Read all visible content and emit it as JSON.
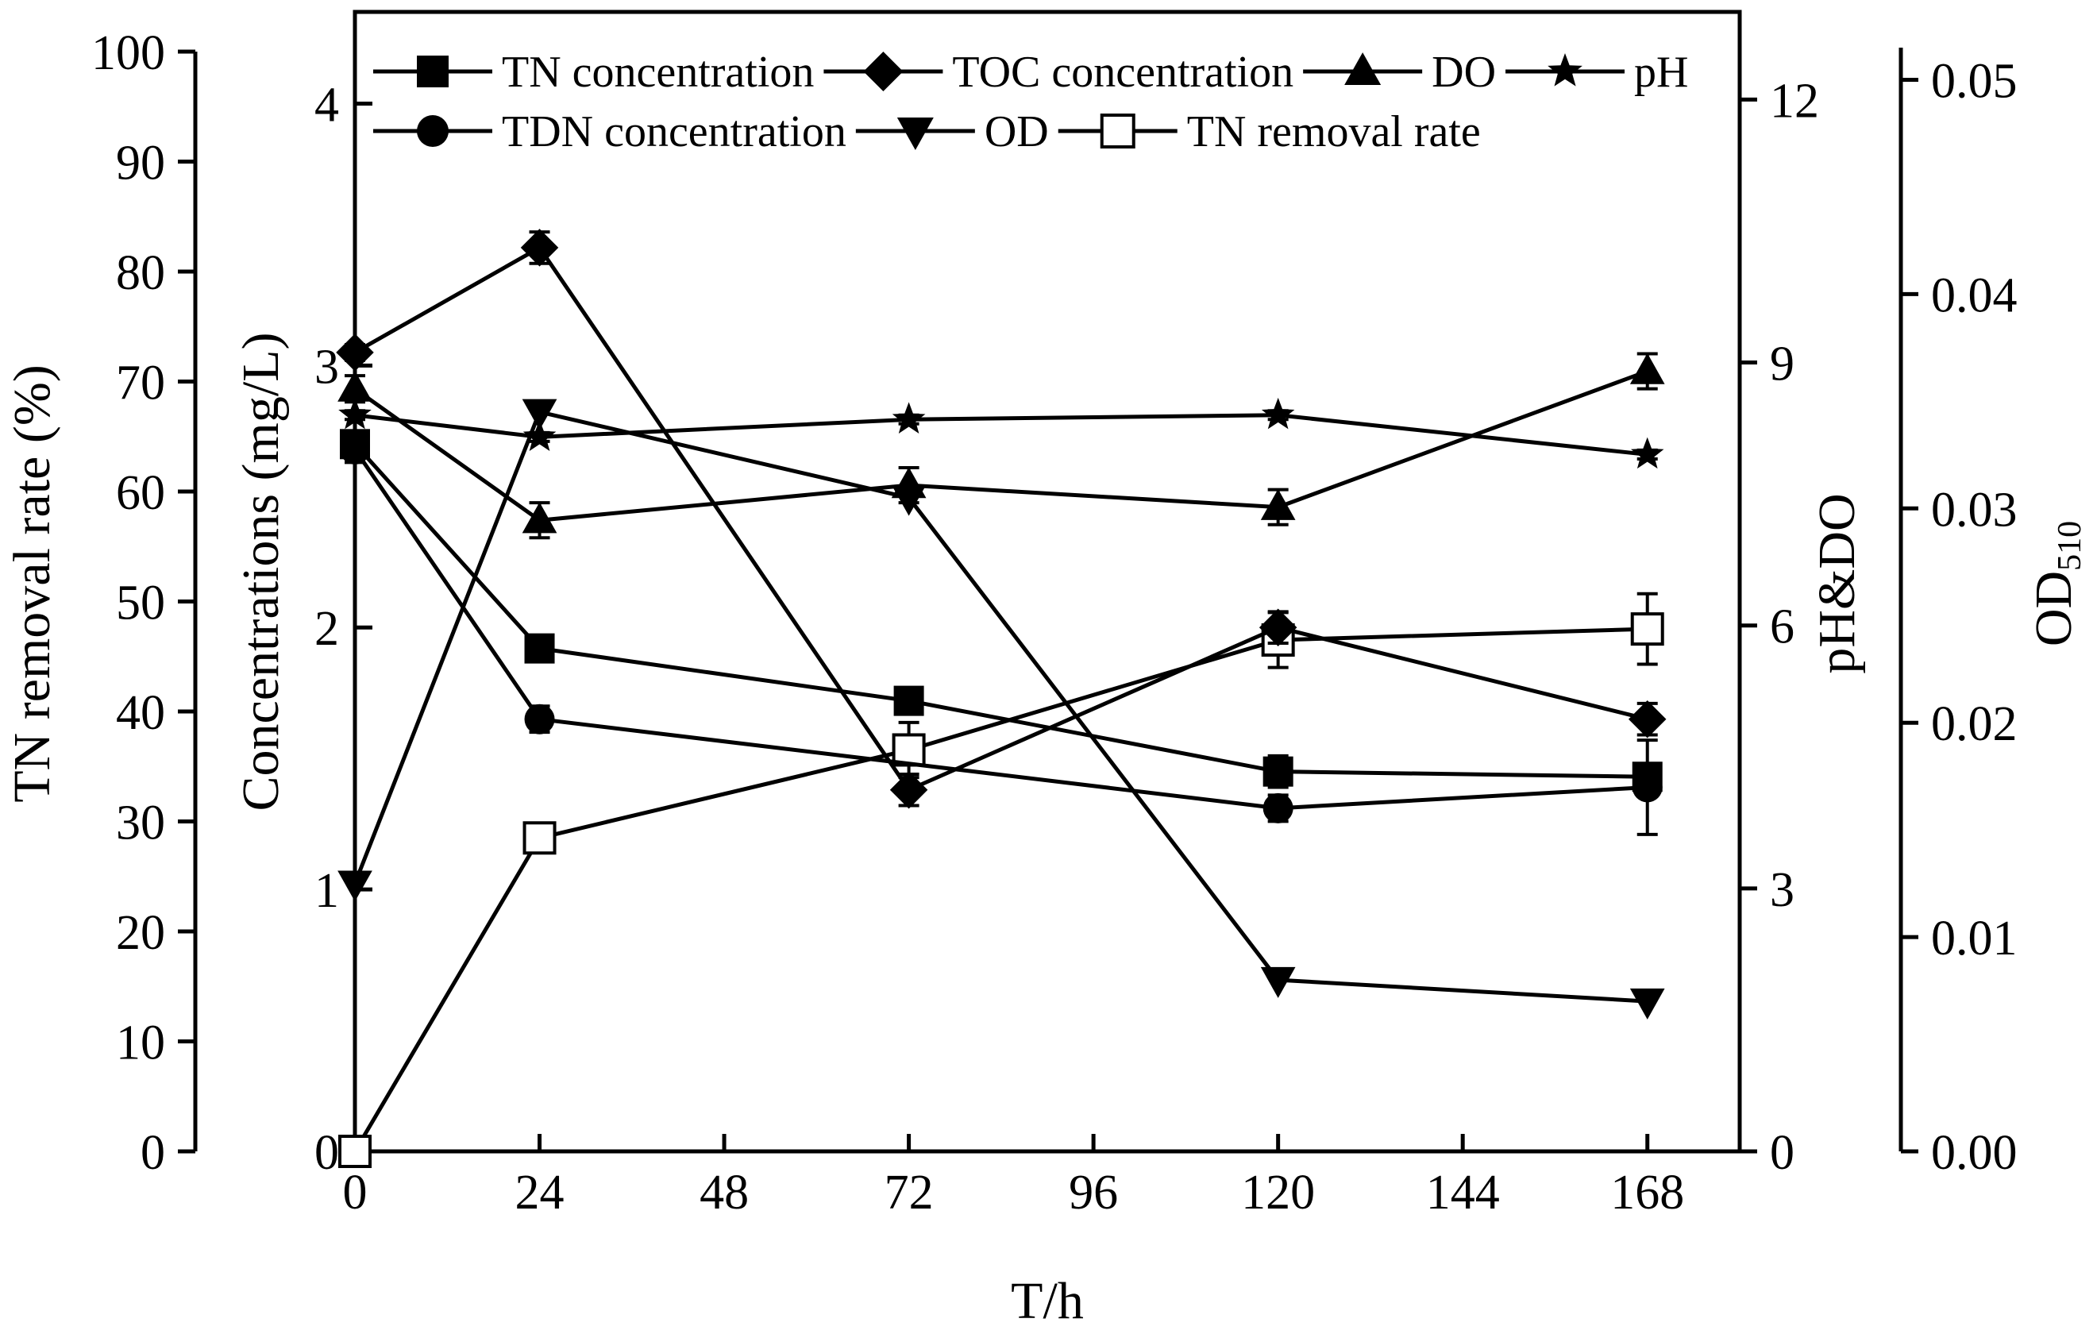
{
  "chart_data": {
    "type": "line",
    "xlabel": "T/h",
    "x": [
      0,
      24,
      72,
      120,
      168
    ],
    "xlim": [
      0,
      180
    ],
    "xticks": [
      "0",
      "24",
      "48",
      "72",
      "96",
      "120",
      "144",
      "168"
    ],
    "axes": {
      "left_outer": {
        "label": "TN removal rate (%)",
        "range": [
          0,
          100
        ],
        "ticks": [
          "0",
          "10",
          "20",
          "30",
          "40",
          "50",
          "60",
          "70",
          "80",
          "90",
          "100"
        ]
      },
      "left_inner": {
        "label": "Concentrations (mg/L)",
        "range": [
          0,
          4.35
        ],
        "ticks": [
          "0",
          "1",
          "2",
          "3",
          "4"
        ]
      },
      "right_inner": {
        "label": "pH&DO",
        "range": [
          0,
          13
        ],
        "ticks": [
          "0",
          "3",
          "6",
          "9",
          "12"
        ]
      },
      "right_outer": {
        "label_main": "OD",
        "label_sub": "510",
        "range": [
          0,
          0.0515
        ],
        "ticks": [
          "0.00",
          "0.01",
          "0.02",
          "0.03",
          "0.04",
          "0.05"
        ]
      }
    },
    "series": [
      {
        "name": "TN concentration",
        "marker": "square-filled",
        "axis": "left_inner",
        "values": [
          2.7,
          1.92,
          1.72,
          1.45,
          1.43
        ],
        "errors": [
          0.03,
          0.03,
          0.03,
          0.06,
          0.05
        ]
      },
      {
        "name": "TOC concentration",
        "marker": "diamond-filled",
        "axis": "left_inner",
        "values": [
          3.05,
          3.45,
          1.38,
          2.0,
          1.65
        ],
        "errors": [
          0.03,
          0.06,
          0.06,
          0.06,
          0.06
        ]
      },
      {
        "name": "DO",
        "marker": "triangle-up-filled",
        "axis": "right_inner",
        "values": [
          8.7,
          7.2,
          7.6,
          7.35,
          8.9
        ],
        "errors": [
          0.15,
          0.2,
          0.2,
          0.2,
          0.2
        ]
      },
      {
        "name": "pH",
        "marker": "star-filled",
        "axis": "right_inner",
        "values": [
          8.4,
          8.15,
          8.35,
          8.4,
          7.95
        ],
        "errors": [
          0.05,
          0.05,
          0.05,
          0.05,
          0.05
        ]
      },
      {
        "name": "TDN concentration",
        "marker": "circle-filled",
        "axis": "left_inner",
        "values": [
          2.68,
          1.65,
          null,
          1.31,
          1.39
        ],
        "errors": [
          0.05,
          0.05,
          0,
          0.05,
          0.18
        ]
      },
      {
        "name": "OD",
        "marker": "triangle-down-filled",
        "axis": "right_outer",
        "values": [
          0.0125,
          0.0345,
          0.0305,
          0.008,
          0.007
        ],
        "errors": [
          0,
          0,
          0,
          0,
          0
        ]
      },
      {
        "name": "TN removal rate",
        "marker": "square-open",
        "axis": "left_outer",
        "values": [
          0,
          28.5,
          36.5,
          46.5,
          47.5
        ],
        "errors": [
          0,
          1.2,
          2.5,
          2.5,
          3.2
        ]
      }
    ],
    "legend": {
      "row1": [
        "TN concentration",
        "TOC concentration",
        "DO",
        "pH"
      ],
      "row2": [
        "TDN concentration",
        "OD",
        "TN removal rate"
      ]
    }
  }
}
